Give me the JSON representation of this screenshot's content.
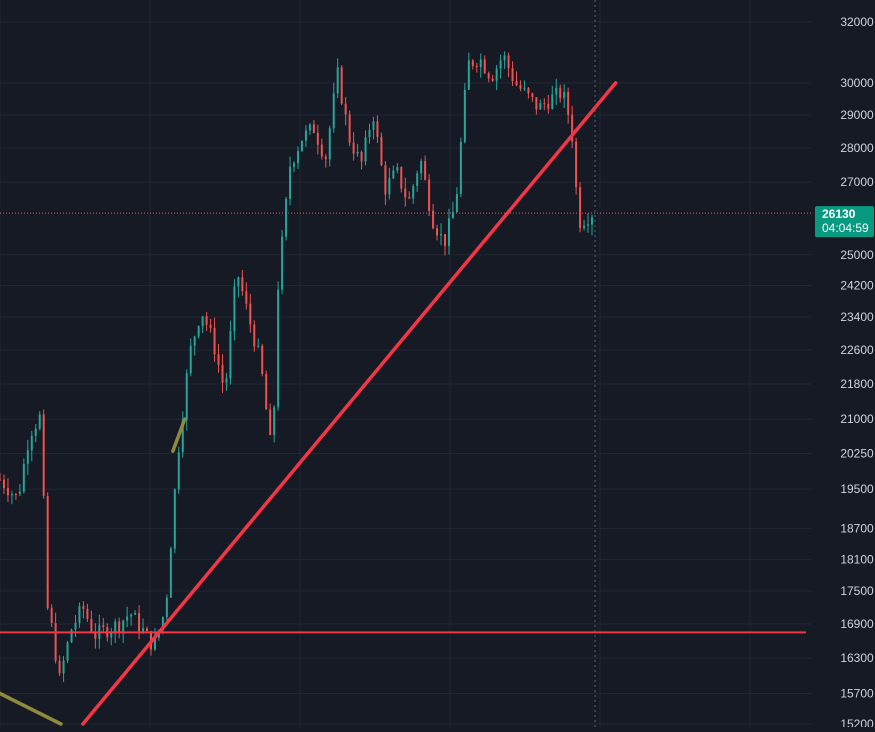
{
  "chart_data": {
    "type": "candlestick",
    "y_scale": "log",
    "ylim": [
      15200,
      32500
    ],
    "y_ticks": [
      {
        "value": 32000,
        "label": "32000"
      },
      {
        "value": 30000,
        "label": "30000"
      },
      {
        "value": 29000,
        "label": "29000"
      },
      {
        "value": 28000,
        "label": "28000"
      },
      {
        "value": 27000,
        "label": "27000"
      },
      {
        "value": 25000,
        "label": "25000"
      },
      {
        "value": 24200,
        "label": "24200"
      },
      {
        "value": 23400,
        "label": "23400"
      },
      {
        "value": 22600,
        "label": "22600"
      },
      {
        "value": 21800,
        "label": "21800"
      },
      {
        "value": 21000,
        "label": "21000"
      },
      {
        "value": 20250,
        "label": "20250"
      },
      {
        "value": 19500,
        "label": "19500"
      },
      {
        "value": 18700,
        "label": "18700"
      },
      {
        "value": 18100,
        "label": "18100"
      },
      {
        "value": 17500,
        "label": "17500"
      },
      {
        "value": 16900,
        "label": "16900"
      },
      {
        "value": 16300,
        "label": "16300"
      },
      {
        "value": 15700,
        "label": "15700"
      },
      {
        "value": 15200,
        "label": "15200"
      }
    ],
    "grid": true,
    "price_path": [
      [
        0,
        19700
      ],
      [
        0.03,
        19300
      ],
      [
        0.05,
        20700
      ],
      [
        0.07,
        21100
      ],
      [
        0.078,
        17300
      ],
      [
        0.09,
        16700
      ],
      [
        0.1,
        15900
      ],
      [
        0.12,
        16800
      ],
      [
        0.14,
        17200
      ],
      [
        0.16,
        16700
      ],
      [
        0.2,
        16900
      ],
      [
        0.22,
        17100
      ],
      [
        0.24,
        16800
      ],
      [
        0.26,
        16500
      ],
      [
        0.28,
        17200
      ],
      [
        0.3,
        20200
      ],
      [
        0.32,
        22500
      ],
      [
        0.34,
        23600
      ],
      [
        0.36,
        22800
      ],
      [
        0.38,
        21600
      ],
      [
        0.4,
        24600
      ],
      [
        0.42,
        23400
      ],
      [
        0.44,
        22300
      ],
      [
        0.46,
        20100
      ],
      [
        0.47,
        24300
      ],
      [
        0.49,
        27500
      ],
      [
        0.51,
        28300
      ],
      [
        0.53,
        28600
      ],
      [
        0.55,
        27700
      ],
      [
        0.57,
        30300
      ],
      [
        0.59,
        28300
      ],
      [
        0.61,
        27500
      ],
      [
        0.63,
        29100
      ],
      [
        0.65,
        26800
      ],
      [
        0.67,
        27300
      ],
      [
        0.69,
        26400
      ],
      [
        0.71,
        27700
      ],
      [
        0.73,
        26000
      ],
      [
        0.75,
        25300
      ],
      [
        0.77,
        26400
      ],
      [
        0.79,
        30600
      ],
      [
        0.81,
        30800
      ],
      [
        0.83,
        30200
      ],
      [
        0.85,
        30900
      ],
      [
        0.87,
        30000
      ],
      [
        0.89,
        29600
      ],
      [
        0.91,
        29200
      ],
      [
        0.93,
        29500
      ],
      [
        0.95,
        29700
      ],
      [
        0.965,
        28700
      ],
      [
        0.975,
        26400
      ],
      [
        0.98,
        25900
      ],
      [
        1.0,
        26130
      ]
    ],
    "candle_count": 150,
    "trendlines": [
      {
        "name": "",
        "color": "#f23645",
        "from": [
          0.14,
          15200
        ],
        "to": [
          1.04,
          30000
        ]
      },
      {
        "name": "",
        "color": "#f23645",
        "from": [
          -0.1,
          16750
        ],
        "to": [
          1.36,
          16750
        ]
      },
      {
        "name": "",
        "color": "#8f8b3a",
        "from": [
          -0.1,
          16200
        ],
        "to": [
          0.103,
          15200
        ]
      },
      {
        "name": "",
        "color": "#8f8b3a",
        "from": [
          0.292,
          20300
        ],
        "to": [
          0.312,
          21000
        ]
      }
    ],
    "current_price": {
      "value": 26130,
      "label": "26130",
      "countdown": "04:04:59",
      "color": "#089981"
    },
    "colors": {
      "up": "#26a69a",
      "down": "#ef5350",
      "background": "#161a25",
      "grid": "#222633",
      "axis_text": "#d1d4dc"
    }
  }
}
